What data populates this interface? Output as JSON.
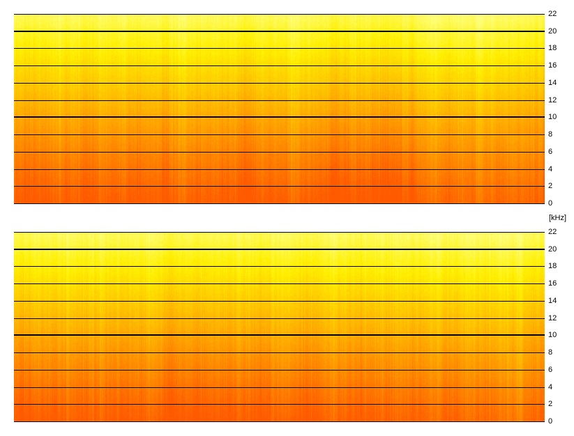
{
  "chart_data": {
    "type": "heatmap",
    "kind": "spectrogram",
    "channels": 2,
    "y_unit_label": "[kHz]",
    "ylim": [
      0,
      22
    ],
    "y_ticks": [
      0,
      2,
      4,
      6,
      8,
      10,
      12,
      14,
      16,
      18,
      20,
      22
    ],
    "y_tick_labels": [
      "0",
      "2",
      "4",
      "6",
      "8",
      "10",
      "12",
      "14",
      "16",
      "18",
      "20",
      "22"
    ],
    "emphasized_ticks": [
      10,
      20
    ],
    "grid": true,
    "color_scale": [
      "#ff5a00",
      "#ff8c00",
      "#ffc000",
      "#fff000",
      "#ffff80"
    ],
    "channels_data": [
      {
        "channel": "top"
      },
      {
        "channel": "bottom"
      }
    ]
  }
}
